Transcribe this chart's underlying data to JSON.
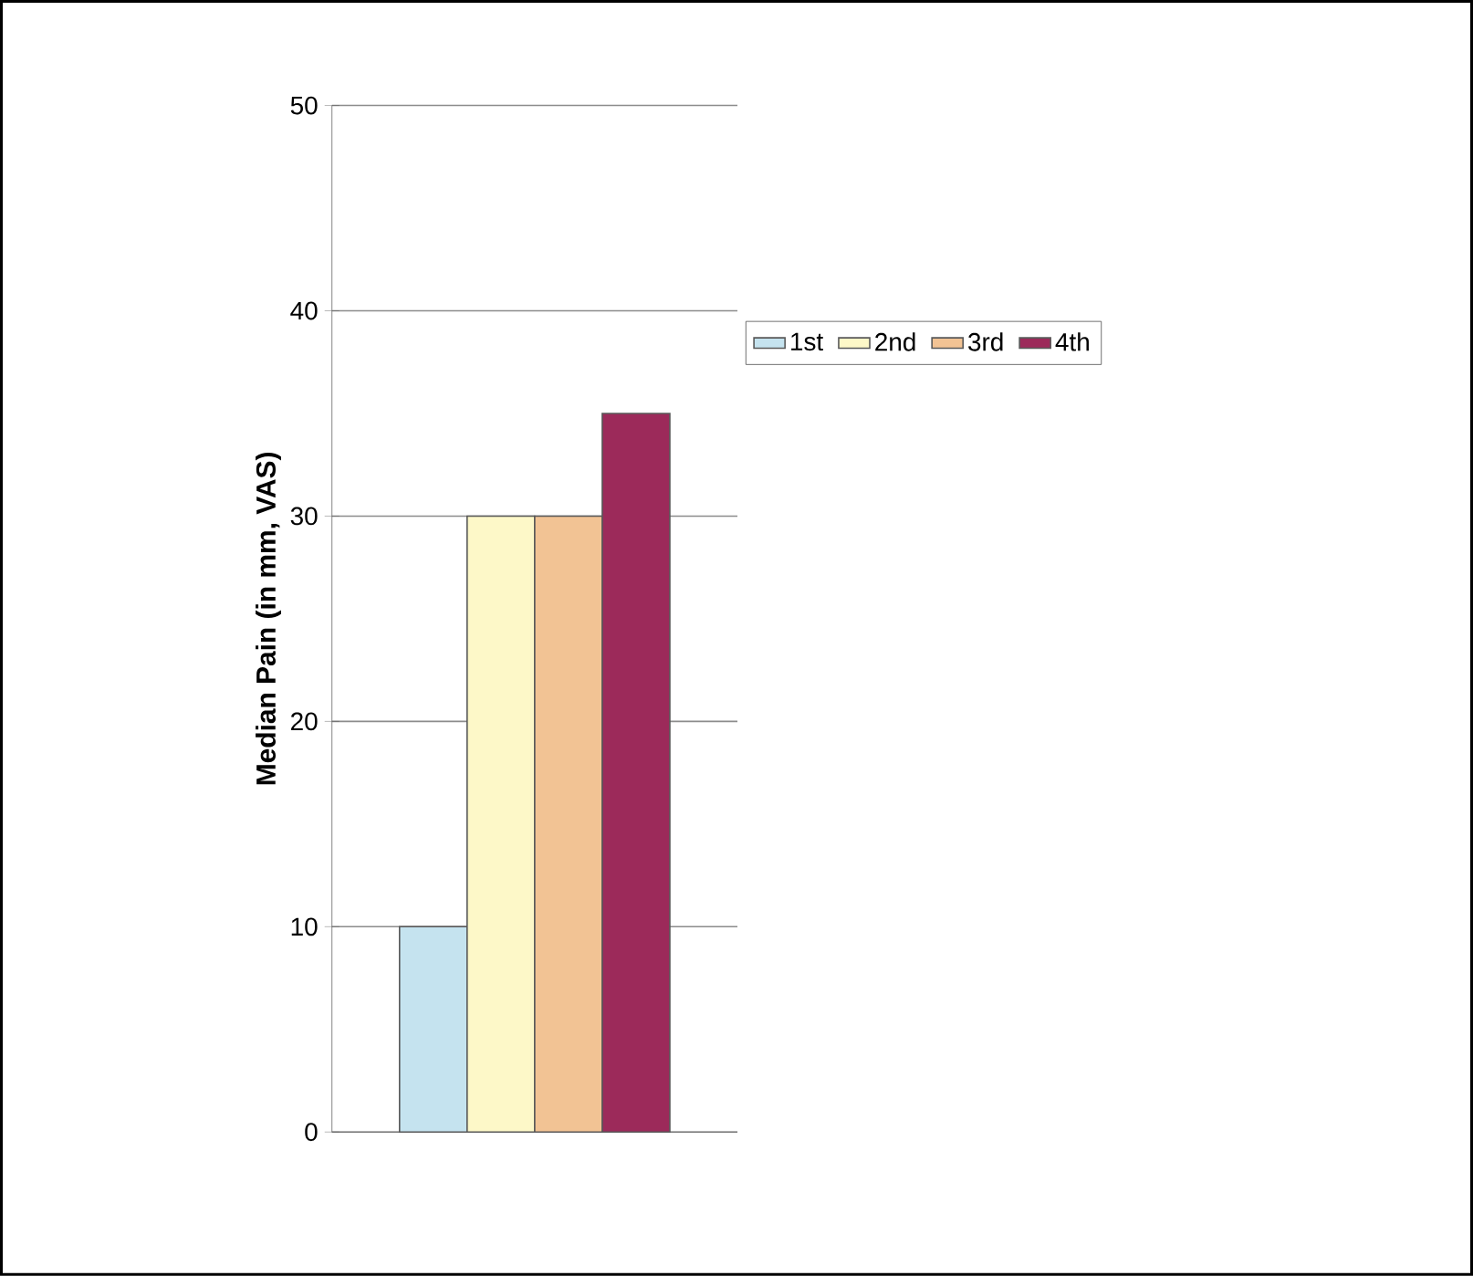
{
  "chart_data": {
    "type": "bar",
    "ylabel": "Median Pain (in mm, VAS)",
    "categories": [
      null
    ],
    "series": [
      {
        "name": "1st",
        "color": "#c5e3ef",
        "values": [
          10
        ]
      },
      {
        "name": "2nd",
        "color": "#fdf8c8",
        "values": [
          30
        ]
      },
      {
        "name": "3rd",
        "color": "#f2c394",
        "values": [
          30
        ]
      },
      {
        "name": "4th",
        "color": "#9c2a5a",
        "values": [
          35
        ]
      }
    ],
    "ylim": [
      0,
      50
    ],
    "yticks": [
      0,
      10,
      20,
      30,
      40,
      50
    ],
    "grid": "y",
    "legend": "right",
    "tick_labels": "y"
  }
}
